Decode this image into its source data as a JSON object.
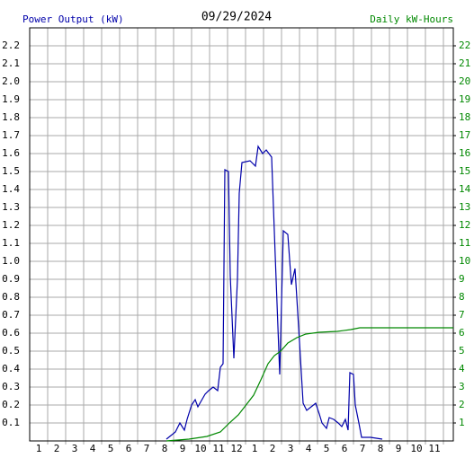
{
  "chart_data": {
    "type": "line",
    "title": "09/29/2024",
    "y_label": "Power Output (kW)",
    "y2_label": "Daily kW-Hours",
    "xlim": [
      0.5,
      24.05
    ],
    "ylim": [
      0,
      2.3
    ],
    "y2lim": [
      0,
      23
    ],
    "grid": true,
    "xticks": [
      {
        "value": 1,
        "label": "1"
      },
      {
        "value": 2,
        "label": "2"
      },
      {
        "value": 3,
        "label": "3"
      },
      {
        "value": 4,
        "label": "4"
      },
      {
        "value": 5,
        "label": "5"
      },
      {
        "value": 6,
        "label": "6"
      },
      {
        "value": 7,
        "label": "7"
      },
      {
        "value": 8,
        "label": "8"
      },
      {
        "value": 9,
        "label": "9"
      },
      {
        "value": 10,
        "label": "10"
      },
      {
        "value": 11,
        "label": "11"
      },
      {
        "value": 12,
        "label": "12"
      },
      {
        "value": 13,
        "label": "1"
      },
      {
        "value": 14,
        "label": "2"
      },
      {
        "value": 15,
        "label": "3"
      },
      {
        "value": 16,
        "label": "4"
      },
      {
        "value": 17,
        "label": "5"
      },
      {
        "value": 18,
        "label": "6"
      },
      {
        "value": 19,
        "label": "7"
      },
      {
        "value": 20,
        "label": "8"
      },
      {
        "value": 21,
        "label": "9"
      },
      {
        "value": 22,
        "label": "10"
      },
      {
        "value": 23,
        "label": "11"
      }
    ],
    "yticks": [
      0.1,
      0.2,
      0.3,
      0.4,
      0.5,
      0.6,
      0.7,
      0.8,
      0.9,
      {
        "value": 1,
        "label": "1.0"
      },
      1.1,
      1.2,
      1.3,
      1.4,
      1.5,
      1.6,
      1.7,
      1.8,
      1.9,
      {
        "value": 2,
        "label": "2.0"
      },
      2.1,
      2.2
    ],
    "y2ticks": [
      1,
      2,
      3,
      4,
      5,
      6,
      7,
      8,
      9,
      10,
      11,
      12,
      13,
      14,
      15,
      16,
      17,
      18,
      19,
      20,
      21,
      22
    ],
    "series": [
      {
        "color": "#0000aa",
        "x": [
          8.1,
          8.35,
          8.6,
          8.85,
          9.1,
          9.25,
          9.5,
          9.7,
          9.85,
          10.25,
          10.45,
          10.7,
          10.95,
          11.1,
          11.25,
          11.35,
          11.55,
          11.65,
          11.85,
          12.05,
          12.15,
          12.3,
          12.75,
          13.05,
          13.2,
          13.45,
          13.65,
          13.95,
          14.15,
          14.4,
          14.6,
          14.85,
          15.05,
          15.25,
          15.5,
          15.7,
          15.9,
          16.15,
          16.4,
          16.6,
          16.75,
          17.0,
          17.15,
          17.4,
          17.65,
          17.85,
          18.05,
          18.2,
          18.3,
          18.5,
          18.6,
          18.8,
          18.95,
          19.45,
          20.1
        ],
        "values": [
          0.01,
          0.03,
          0.05,
          0.1,
          0.06,
          0.12,
          0.2,
          0.23,
          0.19,
          0.26,
          0.28,
          0.3,
          0.28,
          0.41,
          0.43,
          1.51,
          1.5,
          0.92,
          0.46,
          0.9,
          1.38,
          1.55,
          1.56,
          1.53,
          1.64,
          1.6,
          1.62,
          1.58,
          1.03,
          0.37,
          1.17,
          1.15,
          0.87,
          0.96,
          0.55,
          0.21,
          0.17,
          0.19,
          0.21,
          0.15,
          0.1,
          0.07,
          0.13,
          0.12,
          0.1,
          0.08,
          0.12,
          0.06,
          0.38,
          0.37,
          0.2,
          0.1,
          0.02,
          0.02,
          0.01
        ]
      },
      {
        "color": "#008800",
        "axis": "y2",
        "x": [
          8.1,
          9.35,
          10.35,
          11.1,
          11.6,
          12.1,
          12.45,
          12.95,
          13.35,
          13.75,
          14.1,
          14.45,
          14.85,
          15.35,
          15.85,
          16.6,
          17.6,
          18.35,
          18.85,
          24.05
        ],
        "values": [
          0,
          0.1,
          0.25,
          0.5,
          1.0,
          1.45,
          1.9,
          2.55,
          3.4,
          4.3,
          4.75,
          5.0,
          5.45,
          5.75,
          5.95,
          6.05,
          6.1,
          6.2,
          6.3,
          6.3
        ]
      }
    ]
  }
}
